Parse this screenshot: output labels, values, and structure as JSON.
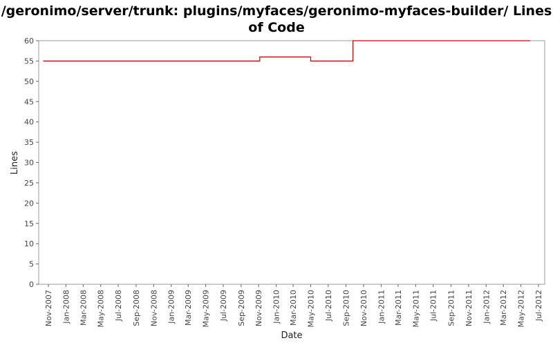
{
  "chart_data": {
    "type": "line",
    "title": "/geronimo/server/trunk: plugins/myfaces/geronimo-myfaces-builder/ Lines of Code",
    "xlabel": "Date",
    "ylabel": "Lines",
    "ylim": [
      0,
      60
    ],
    "yticks": [
      0,
      5,
      10,
      15,
      20,
      25,
      30,
      35,
      40,
      45,
      50,
      55,
      60
    ],
    "xticks": [
      "Nov-2007",
      "Jan-2008",
      "Mar-2008",
      "May-2008",
      "Jul-2008",
      "Sep-2008",
      "Nov-2008",
      "Jan-2009",
      "Mar-2009",
      "May-2009",
      "Jul-2009",
      "Sep-2009",
      "Nov-2009",
      "Jan-2010",
      "Mar-2010",
      "May-2010",
      "Jul-2010",
      "Sep-2010",
      "Nov-2010",
      "Jan-2011",
      "Mar-2011",
      "May-2011",
      "Jul-2011",
      "Sep-2011",
      "Nov-2011",
      "Jan-2012",
      "Mar-2012",
      "May-2012",
      "Jul-2012"
    ],
    "grid": false,
    "line_style": "step",
    "series": [
      {
        "color": "#cc0000",
        "points": [
          {
            "x": "2007-10-15",
            "y": 55
          },
          {
            "x": "2009-11-05",
            "y": 56
          },
          {
            "x": "2010-05-01",
            "y": 55
          },
          {
            "x": "2010-09-25",
            "y": 60
          },
          {
            "x": "2012-06-01",
            "y": 60
          }
        ]
      }
    ]
  }
}
